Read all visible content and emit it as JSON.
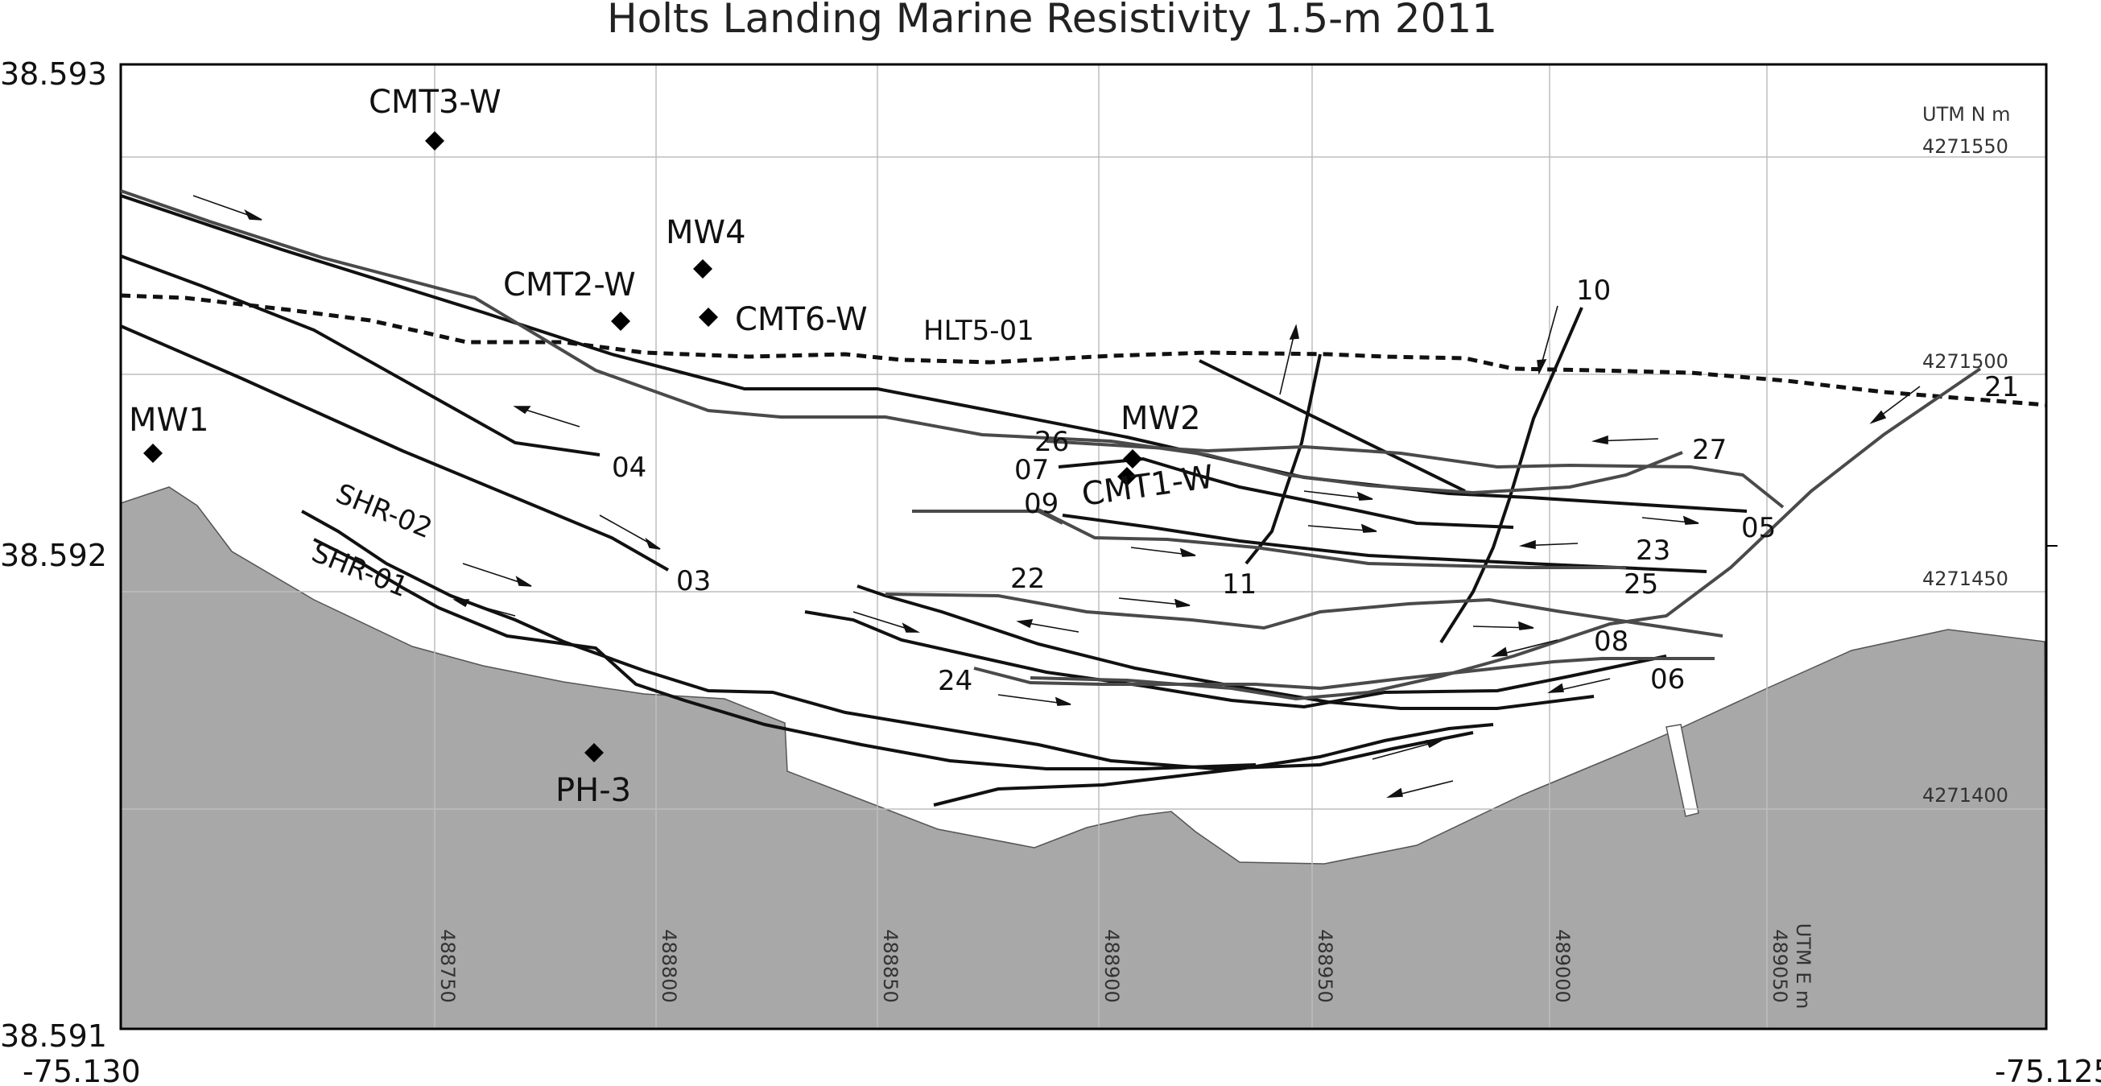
{
  "title": "Holts Landing Marine Resistivity  1.5-m  2011",
  "lat_top": "38.593",
  "lat_mid": "38.592",
  "lat_bottom": "38.591",
  "lon_left": "-75.130",
  "lon_right": "-75.125",
  "utm_n_header": "UTM N m",
  "utm_n_labels": [
    "4271550",
    "4271500",
    "4271450",
    "4271400"
  ],
  "utm_e_labels": [
    "488750",
    "488800",
    "488850",
    "488900",
    "488950",
    "489000"
  ],
  "utm_e_header": "UTM E m",
  "utm_e_last": "489050",
  "wells": [
    "CMT3-W",
    "MW4",
    "CMT2-W",
    "CMT6-W",
    "MW1",
    "MW2",
    "CMT1-W",
    "PH-3"
  ],
  "baseline_label": "HLT5-01",
  "shore_lines": [
    "SHR-02",
    "SHR-01"
  ],
  "line_numbers": [
    "04",
    "03",
    "26",
    "07",
    "09",
    "27",
    "05",
    "23",
    "25",
    "11",
    "22",
    "24",
    "08",
    "06",
    "10",
    "21"
  ],
  "colors": {
    "land": "#a8a8a8",
    "grid": "#bdbdbd",
    "line_dark": "#111111",
    "line_gray": "#4a4a4a",
    "frame": "#000000"
  }
}
